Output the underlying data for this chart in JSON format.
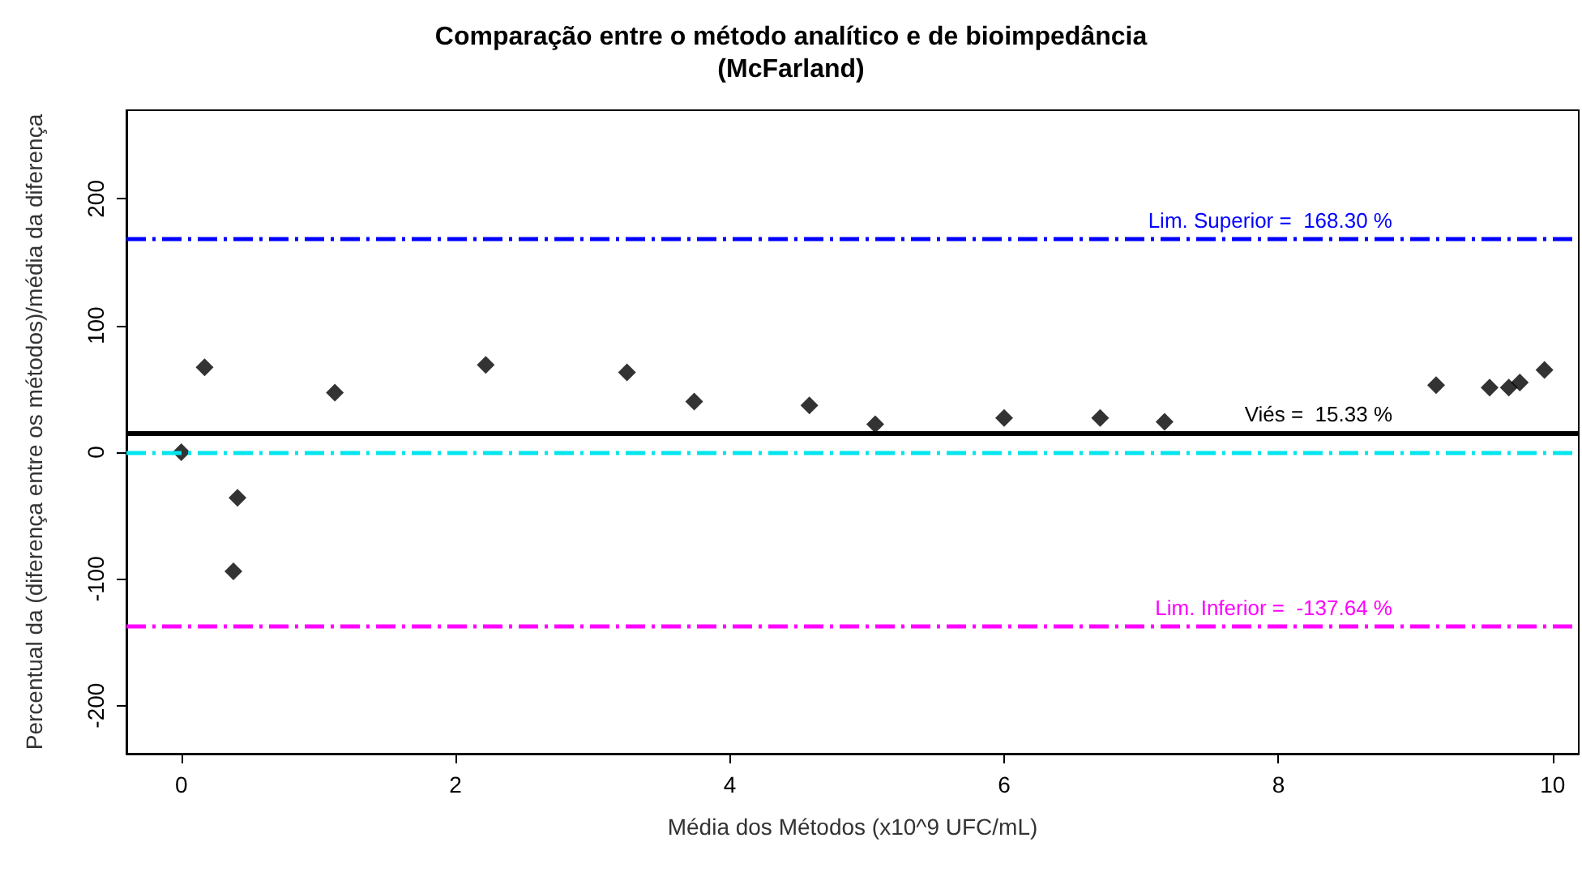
{
  "chart_data": {
    "type": "scatter",
    "title": "Comparação entre o método analítico e de bioimpedância\n(McFarland)",
    "xlabel": "Média dos Métodos (x10^9 UFC/mL)",
    "ylabel": "Percentual da (diferença entre os métodos)/média da diferença",
    "x": [
      0,
      0.17,
      0.38,
      0.41,
      1.12,
      2.22,
      3.25,
      3.74,
      4.58,
      5.06,
      6.0,
      6.7,
      7.17,
      9.15,
      9.54,
      9.68,
      9.76,
      9.94
    ],
    "values": [
      0,
      67,
      -94,
      -36,
      47,
      69,
      63,
      40,
      37,
      22,
      27,
      27,
      24,
      53,
      51,
      51,
      55,
      65
    ],
    "color": "#000000",
    "marker": "diamond",
    "grid": false,
    "xlim": [
      -0.4,
      10.19
    ],
    "xticks": [
      0,
      2,
      4,
      6,
      8,
      10
    ],
    "ylim": [
      -238,
      270
    ],
    "yticks": [
      -200,
      -100,
      0,
      100,
      200
    ],
    "ref_lines": [
      {
        "axis": "y",
        "value": 168.3,
        "label": "Lim. Superior =  168.30 %",
        "color": "#0000ff",
        "line_style": "dashed"
      },
      {
        "axis": "y",
        "value": 15.33,
        "label": "Viés =  15.33 %",
        "color": "#000000",
        "line_style": "solid"
      },
      {
        "axis": "y",
        "value": 0,
        "label": null,
        "color": "#00e5ee",
        "line_style": "dashed"
      },
      {
        "axis": "y",
        "value": -137.64,
        "label": "Lim. Inferior =  -137.64 %",
        "color": "#ff00ff",
        "line_style": "dashed"
      }
    ]
  }
}
